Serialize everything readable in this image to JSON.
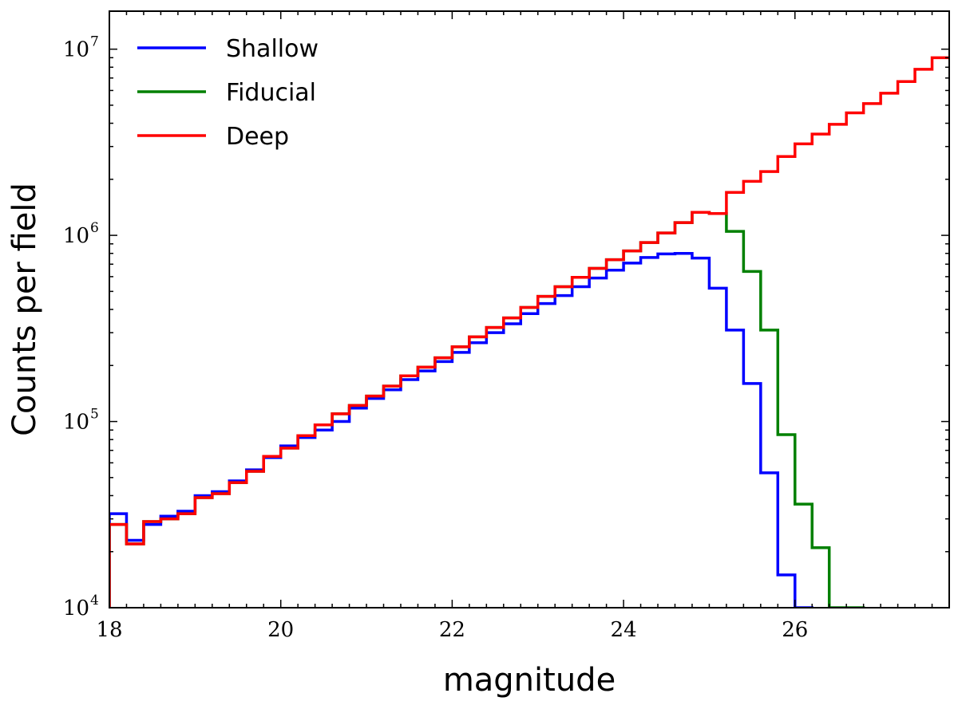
{
  "chart_data": {
    "type": "line",
    "style": "step",
    "xlabel": "magnitude",
    "ylabel": "Counts per field",
    "xlim": [
      18,
      27.8
    ],
    "ylim": [
      10000,
      16000000
    ],
    "yscale": "log",
    "x_ticks": [
      18,
      20,
      22,
      24,
      26
    ],
    "x_tick_labels": [
      "18",
      "20",
      "22",
      "24",
      "26"
    ],
    "y_tick_labels": [
      {
        "value": 10000,
        "base": "10",
        "exp": "4"
      },
      {
        "value": 100000,
        "base": "10",
        "exp": "5"
      },
      {
        "value": 1000000,
        "base": "10",
        "exp": "6"
      },
      {
        "value": 10000000,
        "base": "10",
        "exp": "7"
      }
    ],
    "grid": false,
    "legend_position": "top-left",
    "bin_width": 0.2,
    "series": [
      {
        "name": "Shallow",
        "color": "#0000ff",
        "bin_starts": [
          18.0,
          18.2,
          18.4,
          18.6,
          18.8,
          19.0,
          19.2,
          19.4,
          19.6,
          19.8,
          20.0,
          20.2,
          20.4,
          20.6,
          20.8,
          21.0,
          21.2,
          21.4,
          21.6,
          21.8,
          22.0,
          22.2,
          22.4,
          22.6,
          22.8,
          23.0,
          23.2,
          23.4,
          23.6,
          23.8,
          24.0,
          24.2,
          24.4,
          24.6,
          24.8,
          25.0,
          25.2,
          25.4,
          25.6,
          25.8,
          26.0
        ],
        "values": [
          32000,
          23000,
          28000,
          31000,
          33000,
          40000,
          42000,
          48000,
          55000,
          64000,
          74000,
          82000,
          90000,
          100000,
          118000,
          133000,
          148000,
          168000,
          187000,
          210000,
          235000,
          265000,
          300000,
          335000,
          380000,
          430000,
          475000,
          530000,
          590000,
          650000,
          710000,
          760000,
          795000,
          800000,
          755000,
          520000,
          310000,
          160000,
          53000,
          15000,
          8000
        ]
      },
      {
        "name": "Fiducial",
        "color": "#008000",
        "bin_starts": [
          18.0,
          18.2,
          18.4,
          18.6,
          18.8,
          19.0,
          19.2,
          19.4,
          19.6,
          19.8,
          20.0,
          20.2,
          20.4,
          20.6,
          20.8,
          21.0,
          21.2,
          21.4,
          21.6,
          21.8,
          22.0,
          22.2,
          22.4,
          22.6,
          22.8,
          23.0,
          23.2,
          23.4,
          23.6,
          23.8,
          24.0,
          24.2,
          24.4,
          24.6,
          24.8,
          25.0,
          25.2,
          25.4,
          25.6,
          25.8,
          26.0,
          26.2,
          26.4,
          26.6
        ],
        "values": [
          28000,
          22000,
          29000,
          30000,
          32000,
          39000,
          41000,
          47000,
          54000,
          65000,
          72000,
          84000,
          96000,
          110000,
          122000,
          137000,
          155000,
          176000,
          196000,
          220000,
          252000,
          285000,
          320000,
          360000,
          410000,
          470000,
          530000,
          595000,
          665000,
          740000,
          825000,
          915000,
          1030000,
          1170000,
          1330000,
          1310000,
          1050000,
          640000,
          310000,
          85000,
          36000,
          21000,
          10000,
          8000
        ]
      },
      {
        "name": "Deep",
        "color": "#ff0000",
        "bin_starts": [
          18.0,
          18.2,
          18.4,
          18.6,
          18.8,
          19.0,
          19.2,
          19.4,
          19.6,
          19.8,
          20.0,
          20.2,
          20.4,
          20.6,
          20.8,
          21.0,
          21.2,
          21.4,
          21.6,
          21.8,
          22.0,
          22.2,
          22.4,
          22.6,
          22.8,
          23.0,
          23.2,
          23.4,
          23.6,
          23.8,
          24.0,
          24.2,
          24.4,
          24.6,
          24.8,
          25.0,
          25.2,
          25.4,
          25.6,
          25.8,
          26.0,
          26.2,
          26.4,
          26.6,
          26.8,
          27.0,
          27.2,
          27.4,
          27.6
        ],
        "values": [
          28000,
          22000,
          29000,
          30000,
          32000,
          39000,
          41000,
          47000,
          54000,
          65000,
          72000,
          84000,
          96000,
          110000,
          122000,
          137000,
          155000,
          176000,
          196000,
          220000,
          252000,
          285000,
          320000,
          360000,
          410000,
          470000,
          530000,
          595000,
          665000,
          740000,
          825000,
          915000,
          1030000,
          1170000,
          1330000,
          1310000,
          1700000,
          1950000,
          2200000,
          2650000,
          3100000,
          3500000,
          3950000,
          4550000,
          5100000,
          5800000,
          6700000,
          7800000,
          9000000
        ]
      }
    ]
  }
}
